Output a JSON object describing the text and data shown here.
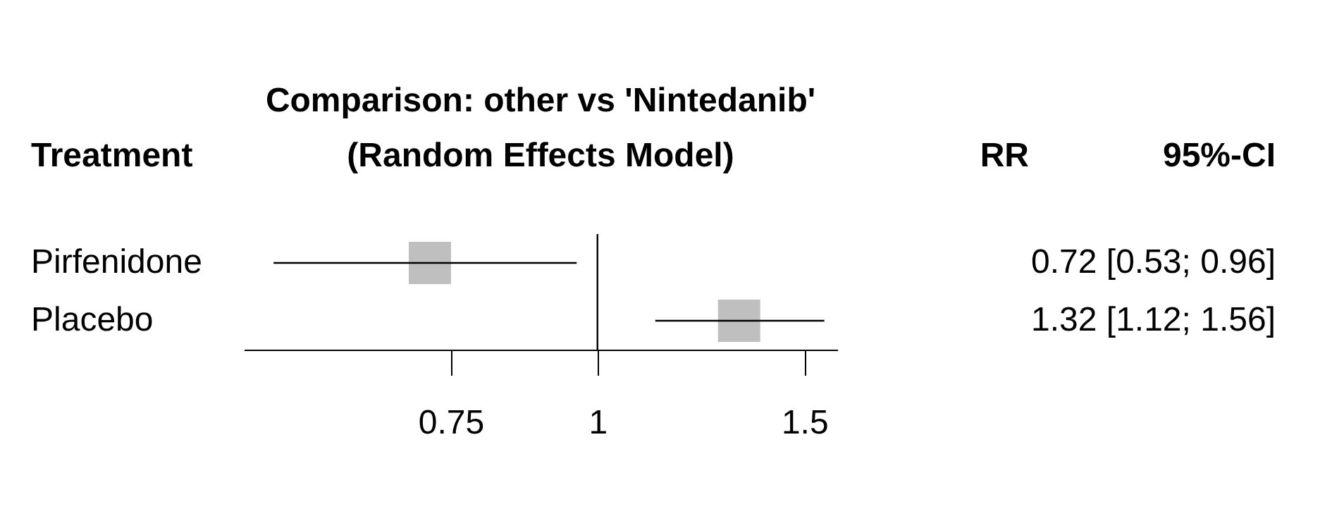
{
  "chart_data": {
    "type": "scatter",
    "orientation": "horizontal",
    "title": "Comparison: other vs 'Nintedanib'",
    "subtitle": "(Random Effects Model)",
    "ylabel": "Treatment",
    "categories": [
      "Pirfenidone",
      "Placebo"
    ],
    "values": [
      0.72,
      1.32
    ],
    "errors": [
      [
        0.53,
        0.96
      ],
      [
        1.12,
        1.56
      ]
    ],
    "value_labels": [
      "0.72 [0.53; 0.96]",
      "1.32 [1.12; 1.56]"
    ],
    "annotations": [
      "RR",
      "95%-CI"
    ],
    "color": "#bfbfbf",
    "marker": "square",
    "log": "x",
    "xlim": [
      0.5,
      1.6
    ],
    "xticks": [
      0.75,
      1,
      1.5
    ],
    "ref_lines": [
      {
        "axis": "x",
        "value": 1
      }
    ],
    "grid": false
  }
}
